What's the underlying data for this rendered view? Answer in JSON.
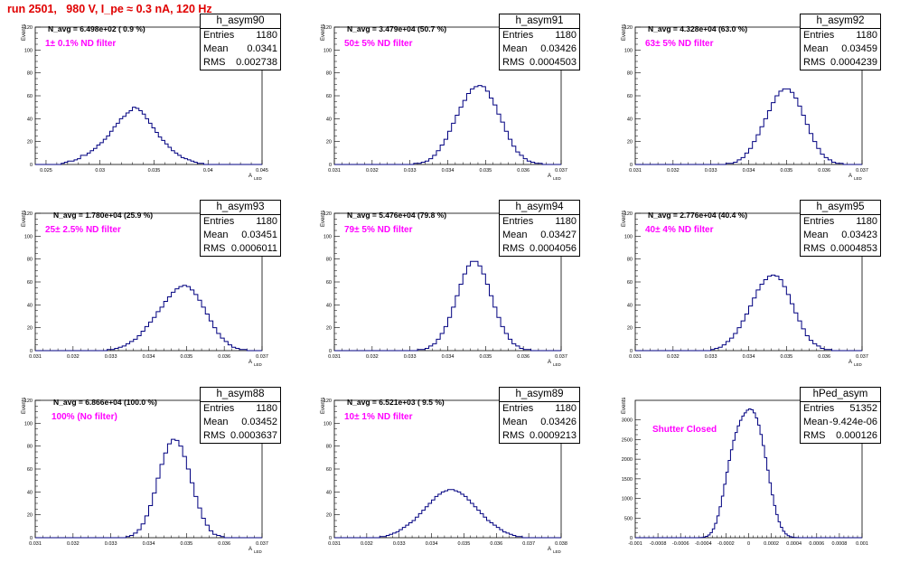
{
  "page_title": "run 2501,   980 V, I_pe ≈ 0.3 nA, 120 Hz",
  "chart_data": [
    {
      "type": "bar",
      "histogram": "h_asym90",
      "navg": "N_avg = 6.498e+02 ( 0.9 %)",
      "filter": "1± 0.1% ND filter",
      "stats": {
        "entries": "1180",
        "mean": "0.0341",
        "rms": "0.002738"
      },
      "ylabel": "Events",
      "xlabel": "A",
      "xlim": [
        0.024,
        0.045
      ],
      "ylim": [
        0,
        120
      ],
      "xticks": [
        "0.025",
        "0.03",
        "0.035",
        "0.04",
        "0.045"
      ],
      "yticks": [
        "0",
        "20",
        "40",
        "60",
        "80",
        "100",
        "120"
      ],
      "bins": {
        "start": 0.024,
        "width": 0.0003,
        "counts": [
          0,
          0,
          0,
          0,
          0,
          0,
          0,
          0,
          1,
          2,
          3,
          3,
          4,
          5,
          8,
          8,
          10,
          12,
          14,
          17,
          19,
          22,
          25,
          29,
          33,
          36,
          40,
          42,
          45,
          47,
          50,
          49,
          47,
          44,
          40,
          36,
          32,
          28,
          24,
          21,
          18,
          15,
          12,
          10,
          8,
          6,
          5,
          4,
          3,
          2,
          1,
          1,
          0,
          0,
          0,
          0,
          0,
          0,
          0,
          0,
          0,
          0,
          0,
          0,
          0,
          0,
          0,
          0,
          0,
          0,
          0
        ]
      }
    },
    {
      "type": "bar",
      "histogram": "h_asym91",
      "navg": "N_avg = 3.479e+04 (50.7 %)",
      "filter": "50± 5% ND filter",
      "stats": {
        "entries": "1180",
        "mean": "0.03426",
        "rms": "0.0004503"
      },
      "ylabel": "Events",
      "xlabel": "A",
      "xlim": [
        0.031,
        0.037
      ],
      "ylim": [
        0,
        120
      ],
      "xticks": [
        "0.031",
        "0.032",
        "0.033",
        "0.034",
        "0.035",
        "0.036",
        "0.037"
      ],
      "yticks": [
        "0",
        "20",
        "40",
        "60",
        "80",
        "100",
        "120"
      ],
      "bins": {
        "start": 0.031,
        "width": 0.0001,
        "counts": [
          0,
          0,
          0,
          0,
          0,
          0,
          0,
          0,
          0,
          0,
          0,
          0,
          0,
          0,
          0,
          0,
          0,
          0,
          0,
          0,
          0,
          1,
          1,
          2,
          3,
          5,
          8,
          12,
          17,
          22,
          29,
          36,
          43,
          50,
          56,
          62,
          66,
          68,
          69,
          68,
          64,
          58,
          52,
          44,
          37,
          29,
          22,
          16,
          11,
          8,
          5,
          3,
          2,
          1,
          1,
          0,
          0,
          0,
          0,
          0,
          0
        ]
      }
    },
    {
      "type": "bar",
      "histogram": "h_asym92",
      "navg": "N_avg = 4.328e+04 (63.0 %)",
      "filter": "63± 5% ND filter",
      "stats": {
        "entries": "1180",
        "mean": "0.03459",
        "rms": "0.0004239"
      },
      "ylabel": "Events",
      "xlabel": "A",
      "xlim": [
        0.031,
        0.037
      ],
      "ylim": [
        0,
        120
      ],
      "xticks": [
        "0.031",
        "0.032",
        "0.033",
        "0.034",
        "0.035",
        "0.036",
        "0.037"
      ],
      "yticks": [
        "0",
        "20",
        "40",
        "60",
        "80",
        "100",
        "120"
      ],
      "bins": {
        "start": 0.031,
        "width": 0.0001,
        "counts": [
          0,
          0,
          0,
          0,
          0,
          0,
          0,
          0,
          0,
          0,
          0,
          0,
          0,
          0,
          0,
          0,
          0,
          0,
          0,
          0,
          0,
          0,
          0,
          0,
          1,
          1,
          2,
          4,
          6,
          10,
          14,
          20,
          26,
          33,
          40,
          47,
          54,
          60,
          64,
          66,
          66,
          63,
          58,
          51,
          43,
          35,
          27,
          20,
          14,
          9,
          6,
          4,
          2,
          1,
          1,
          0,
          0,
          0,
          0,
          0,
          0
        ]
      }
    },
    {
      "type": "bar",
      "histogram": "h_asym93",
      "navg": "N_avg = 1.780e+04 (25.9 %)",
      "filter": "25± 2.5% ND filter",
      "stats": {
        "entries": "1180",
        "mean": "0.03451",
        "rms": "0.0006011"
      },
      "ylabel": "Events",
      "xlabel": "A",
      "xlim": [
        0.031,
        0.037
      ],
      "ylim": [
        0,
        120
      ],
      "xticks": [
        "0.031",
        "0.032",
        "0.033",
        "0.034",
        "0.035",
        "0.036",
        "0.037"
      ],
      "yticks": [
        "0",
        "20",
        "40",
        "60",
        "80",
        "100",
        "120"
      ],
      "bins": {
        "start": 0.031,
        "width": 0.0001,
        "counts": [
          0,
          0,
          0,
          0,
          0,
          0,
          0,
          0,
          0,
          0,
          0,
          0,
          0,
          0,
          0,
          0,
          0,
          0,
          0,
          1,
          1,
          2,
          3,
          4,
          6,
          8,
          10,
          13,
          17,
          21,
          25,
          29,
          34,
          38,
          43,
          47,
          51,
          54,
          56,
          57,
          56,
          53,
          49,
          44,
          38,
          32,
          26,
          20,
          15,
          11,
          8,
          5,
          3,
          2,
          1,
          1,
          0,
          0,
          0,
          0,
          0
        ]
      }
    },
    {
      "type": "bar",
      "histogram": "h_asym94",
      "navg": "N_avg = 5.476e+04 (79.8 %)",
      "filter": "79± 5% ND filter",
      "stats": {
        "entries": "1180",
        "mean": "0.03427",
        "rms": "0.0004056"
      },
      "ylabel": "Events",
      "xlabel": "A",
      "xlim": [
        0.031,
        0.037
      ],
      "ylim": [
        0,
        120
      ],
      "xticks": [
        "0.031",
        "0.032",
        "0.033",
        "0.034",
        "0.035",
        "0.036",
        "0.037"
      ],
      "yticks": [
        "0",
        "20",
        "40",
        "60",
        "80",
        "100",
        "120"
      ],
      "bins": {
        "start": 0.031,
        "width": 0.0001,
        "counts": [
          0,
          0,
          0,
          0,
          0,
          0,
          0,
          0,
          0,
          0,
          0,
          0,
          0,
          0,
          0,
          0,
          0,
          0,
          0,
          0,
          0,
          0,
          1,
          1,
          2,
          4,
          6,
          10,
          15,
          21,
          29,
          38,
          48,
          58,
          67,
          74,
          78,
          78,
          74,
          67,
          58,
          48,
          38,
          29,
          21,
          15,
          10,
          6,
          4,
          2,
          1,
          1,
          0,
          0,
          0,
          0,
          0,
          0,
          0,
          0,
          0
        ]
      }
    },
    {
      "type": "bar",
      "histogram": "h_asym95",
      "navg": "N_avg = 2.776e+04 (40.4 %)",
      "filter": "40± 4% ND filter",
      "stats": {
        "entries": "1180",
        "mean": "0.03423",
        "rms": "0.0004853"
      },
      "ylabel": "Events",
      "xlabel": "A",
      "xlim": [
        0.031,
        0.037
      ],
      "ylim": [
        0,
        120
      ],
      "xticks": [
        "0.031",
        "0.032",
        "0.033",
        "0.034",
        "0.035",
        "0.036",
        "0.037"
      ],
      "yticks": [
        "0",
        "20",
        "40",
        "60",
        "80",
        "100",
        "120"
      ],
      "bins": {
        "start": 0.031,
        "width": 0.0001,
        "counts": [
          0,
          0,
          0,
          0,
          0,
          0,
          0,
          0,
          0,
          0,
          0,
          0,
          0,
          0,
          0,
          0,
          0,
          0,
          0,
          0,
          1,
          2,
          3,
          5,
          8,
          11,
          15,
          20,
          26,
          32,
          39,
          46,
          53,
          58,
          62,
          65,
          66,
          65,
          62,
          56,
          49,
          41,
          33,
          26,
          19,
          13,
          9,
          6,
          4,
          2,
          1,
          1,
          0,
          0,
          0,
          0,
          0,
          0,
          0,
          0,
          0
        ]
      }
    },
    {
      "type": "bar",
      "histogram": "h_asym88",
      "navg": "N_avg = 6.866e+04 (100.0 %)",
      "filter": "100% (No filter)",
      "stats": {
        "entries": "1180",
        "mean": "0.03452",
        "rms": "0.0003637"
      },
      "ylabel": "Events",
      "xlabel": "A",
      "xlim": [
        0.031,
        0.037
      ],
      "ylim": [
        0,
        120
      ],
      "xticks": [
        "0.031",
        "0.032",
        "0.033",
        "0.034",
        "0.035",
        "0.036",
        "0.037"
      ],
      "yticks": [
        "0",
        "20",
        "40",
        "60",
        "80",
        "100",
        "120"
      ],
      "bins": {
        "start": 0.031,
        "width": 0.0001,
        "counts": [
          0,
          0,
          0,
          0,
          0,
          0,
          0,
          0,
          0,
          0,
          0,
          0,
          0,
          0,
          0,
          0,
          0,
          0,
          0,
          0,
          0,
          0,
          0,
          0,
          1,
          2,
          4,
          7,
          12,
          19,
          28,
          39,
          52,
          64,
          74,
          82,
          86,
          85,
          80,
          71,
          60,
          48,
          36,
          26,
          17,
          11,
          6,
          3,
          2,
          1,
          0,
          0,
          0,
          0,
          0,
          0,
          0,
          0,
          0,
          0,
          0
        ]
      }
    },
    {
      "type": "bar",
      "histogram": "h_asym89",
      "navg": "N_avg = 6.521e+03 ( 9.5 %)",
      "filter": "10± 1% ND filter",
      "stats": {
        "entries": "1180",
        "mean": "0.03426",
        "rms": "0.0009213"
      },
      "ylabel": "Events",
      "xlabel": "A",
      "xlim": [
        0.031,
        0.038
      ],
      "ylim": [
        0,
        120
      ],
      "xticks": [
        "0.031",
        "0.032",
        "0.033",
        "0.034",
        "0.035",
        "0.036",
        "0.037",
        "0.038"
      ],
      "yticks": [
        "0",
        "20",
        "40",
        "60",
        "80",
        "100",
        "120"
      ],
      "bins": {
        "start": 0.031,
        "width": 0.0001,
        "counts": [
          0,
          0,
          0,
          0,
          0,
          0,
          0,
          0,
          0,
          0,
          0,
          0,
          0,
          0,
          1,
          1,
          2,
          3,
          4,
          5,
          7,
          9,
          11,
          13,
          15,
          18,
          21,
          24,
          27,
          30,
          33,
          36,
          38,
          40,
          41,
          42,
          42,
          41,
          40,
          38,
          36,
          33,
          30,
          27,
          24,
          21,
          18,
          15,
          13,
          11,
          9,
          7,
          5,
          4,
          3,
          2,
          1,
          1,
          0,
          0,
          0,
          0,
          0,
          0,
          0,
          0,
          0,
          0,
          0,
          0,
          0
        ]
      }
    },
    {
      "type": "bar",
      "histogram": "hPed_asym",
      "navg": "",
      "filter": "Shutter Closed",
      "stats": {
        "entries": "51352",
        "mean": "-9.424e-06",
        "rms": "0.000126"
      },
      "ylabel": "Events",
      "xlabel": "",
      "xlim": [
        -0.001,
        0.001
      ],
      "ylim": [
        0,
        3500
      ],
      "xticks": [
        "-0.001",
        "-0.0008",
        "-0.0006",
        "-0.0004",
        "-0.0002",
        "0",
        "0.0002",
        "0.0004",
        "0.0006",
        "0.0008",
        "0.001"
      ],
      "yticks": [
        "0",
        "500",
        "1000",
        "1500",
        "2000",
        "2500",
        "3000"
      ],
      "bins": {
        "start": -0.001,
        "width": 2e-05,
        "counts": [
          0,
          0,
          0,
          0,
          0,
          0,
          0,
          0,
          0,
          0,
          0,
          0,
          0,
          0,
          0,
          0,
          0,
          0,
          0,
          0,
          0,
          0,
          0,
          0,
          0,
          0,
          0,
          1,
          3,
          7,
          16,
          35,
          70,
          130,
          225,
          365,
          555,
          790,
          1060,
          1360,
          1670,
          1970,
          2240,
          2480,
          2680,
          2850,
          2990,
          3100,
          3180,
          3250,
          3280,
          3260,
          3180,
          3050,
          2870,
          2630,
          2350,
          2040,
          1720,
          1400,
          1090,
          820,
          590,
          405,
          265,
          165,
          95,
          52,
          27,
          13,
          6,
          2,
          1,
          0,
          0,
          0,
          0,
          0,
          0,
          0,
          0,
          0,
          0,
          0,
          0,
          0,
          0,
          0,
          0,
          0,
          0,
          0,
          0,
          0,
          0,
          0,
          0,
          0,
          0,
          0
        ]
      }
    }
  ]
}
